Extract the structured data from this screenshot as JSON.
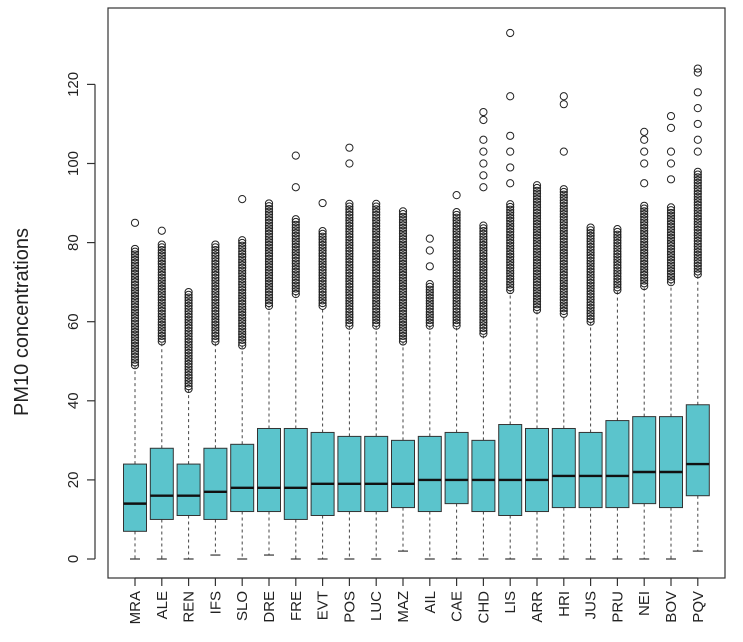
{
  "chart_data": {
    "type": "boxplot",
    "ylabel": "PM10 concentrations",
    "xlabel": "",
    "title": "",
    "ylim": [
      0,
      135
    ],
    "yticks": [
      0,
      20,
      40,
      60,
      80,
      100,
      120
    ],
    "box_color": "#5BC4CC",
    "categories": [
      "MRA",
      "ALE",
      "REN",
      "IFS",
      "SLO",
      "DRE",
      "FRE",
      "EVT",
      "POS",
      "LUC",
      "MAZ",
      "AIL",
      "CAE",
      "CHD",
      "LIS",
      "ARR",
      "HRI",
      "JUS",
      "PRU",
      "NEI",
      "BOV",
      "PQV"
    ],
    "boxes": [
      {
        "name": "MRA",
        "whisker_low": 0,
        "q1": 7,
        "median": 14,
        "q3": 24,
        "whisker_high": 49,
        "outliers_from": 49,
        "outliers_to": 79,
        "extra_outliers": [
          85
        ]
      },
      {
        "name": "ALE",
        "whisker_low": 0,
        "q1": 10,
        "median": 16,
        "q3": 28,
        "whisker_high": 55,
        "outliers_from": 55,
        "outliers_to": 80,
        "extra_outliers": [
          83
        ]
      },
      {
        "name": "REN",
        "whisker_low": 0,
        "q1": 11,
        "median": 16,
        "q3": 24,
        "whisker_high": 43,
        "outliers_from": 43,
        "outliers_to": 68,
        "extra_outliers": []
      },
      {
        "name": "IFS",
        "whisker_low": 1,
        "q1": 10,
        "median": 17,
        "q3": 28,
        "whisker_high": 55,
        "outliers_from": 55,
        "outliers_to": 80,
        "extra_outliers": []
      },
      {
        "name": "SLO",
        "whisker_low": 0,
        "q1": 12,
        "median": 18,
        "q3": 29,
        "whisker_high": 54,
        "outliers_from": 54,
        "outliers_to": 81,
        "extra_outliers": [
          91
        ]
      },
      {
        "name": "DRE",
        "whisker_low": 1,
        "q1": 12,
        "median": 18,
        "q3": 33,
        "whisker_high": 64,
        "outliers_from": 64,
        "outliers_to": 90,
        "extra_outliers": []
      },
      {
        "name": "FRE",
        "whisker_low": 0,
        "q1": 10,
        "median": 18,
        "q3": 33,
        "whisker_high": 67,
        "outliers_from": 67,
        "outliers_to": 86,
        "extra_outliers": [
          94,
          102
        ]
      },
      {
        "name": "EVT",
        "whisker_low": 0,
        "q1": 11,
        "median": 19,
        "q3": 32,
        "whisker_high": 64,
        "outliers_from": 64,
        "outliers_to": 83,
        "extra_outliers": [
          90
        ]
      },
      {
        "name": "POS",
        "whisker_low": 0,
        "q1": 12,
        "median": 19,
        "q3": 31,
        "whisker_high": 59,
        "outliers_from": 59,
        "outliers_to": 90,
        "extra_outliers": [
          100,
          104
        ]
      },
      {
        "name": "LUC",
        "whisker_low": 0,
        "q1": 12,
        "median": 19,
        "q3": 31,
        "whisker_high": 59,
        "outliers_from": 59,
        "outliers_to": 90,
        "extra_outliers": []
      },
      {
        "name": "MAZ",
        "whisker_low": 2,
        "q1": 13,
        "median": 19,
        "q3": 30,
        "whisker_high": 55,
        "outliers_from": 55,
        "outliers_to": 88,
        "extra_outliers": []
      },
      {
        "name": "AIL",
        "whisker_low": 0,
        "q1": 12,
        "median": 20,
        "q3": 31,
        "whisker_high": 59,
        "outliers_from": 59,
        "outliers_to": 70,
        "extra_outliers": [
          74,
          78,
          81
        ]
      },
      {
        "name": "CAE",
        "whisker_low": 0,
        "q1": 14,
        "median": 20,
        "q3": 32,
        "whisker_high": 59,
        "outliers_from": 59,
        "outliers_to": 88,
        "extra_outliers": [
          92
        ]
      },
      {
        "name": "CHD",
        "whisker_low": 0,
        "q1": 12,
        "median": 20,
        "q3": 30,
        "whisker_high": 57,
        "outliers_from": 57,
        "outliers_to": 85,
        "extra_outliers": [
          94,
          97,
          100,
          103,
          106,
          111,
          113
        ]
      },
      {
        "name": "LIS",
        "whisker_low": 0,
        "q1": 11,
        "median": 20,
        "q3": 34,
        "whisker_high": 68,
        "outliers_from": 68,
        "outliers_to": 90,
        "extra_outliers": [
          95,
          99,
          103,
          107,
          117,
          133
        ]
      },
      {
        "name": "ARR",
        "whisker_low": 0,
        "q1": 12,
        "median": 20,
        "q3": 33,
        "whisker_high": 63,
        "outliers_from": 63,
        "outliers_to": 95,
        "extra_outliers": []
      },
      {
        "name": "HRI",
        "whisker_low": 0,
        "q1": 13,
        "median": 21,
        "q3": 33,
        "whisker_high": 62,
        "outliers_from": 62,
        "outliers_to": 94,
        "extra_outliers": [
          103,
          115,
          117
        ]
      },
      {
        "name": "JUS",
        "whisker_low": 0,
        "q1": 13,
        "median": 21,
        "q3": 32,
        "whisker_high": 60,
        "outliers_from": 60,
        "outliers_to": 84,
        "extra_outliers": []
      },
      {
        "name": "PRU",
        "whisker_low": 0,
        "q1": 13,
        "median": 21,
        "q3": 35,
        "whisker_high": 68,
        "outliers_from": 68,
        "outliers_to": 84,
        "extra_outliers": []
      },
      {
        "name": "NEI",
        "whisker_low": 0,
        "q1": 14,
        "median": 22,
        "q3": 36,
        "whisker_high": 69,
        "outliers_from": 69,
        "outliers_to": 90,
        "extra_outliers": [
          95,
          100,
          103,
          106,
          108
        ]
      },
      {
        "name": "BOV",
        "whisker_low": 0,
        "q1": 13,
        "median": 22,
        "q3": 36,
        "whisker_high": 70,
        "outliers_from": 70,
        "outliers_to": 89,
        "extra_outliers": [
          96,
          100,
          103,
          109,
          112
        ]
      },
      {
        "name": "PQV",
        "whisker_low": 2,
        "q1": 16,
        "median": 24,
        "q3": 39,
        "whisker_high": 72,
        "outliers_from": 72,
        "outliers_to": 98,
        "extra_outliers": [
          103,
          106,
          110,
          114,
          118,
          123,
          124
        ]
      }
    ]
  }
}
